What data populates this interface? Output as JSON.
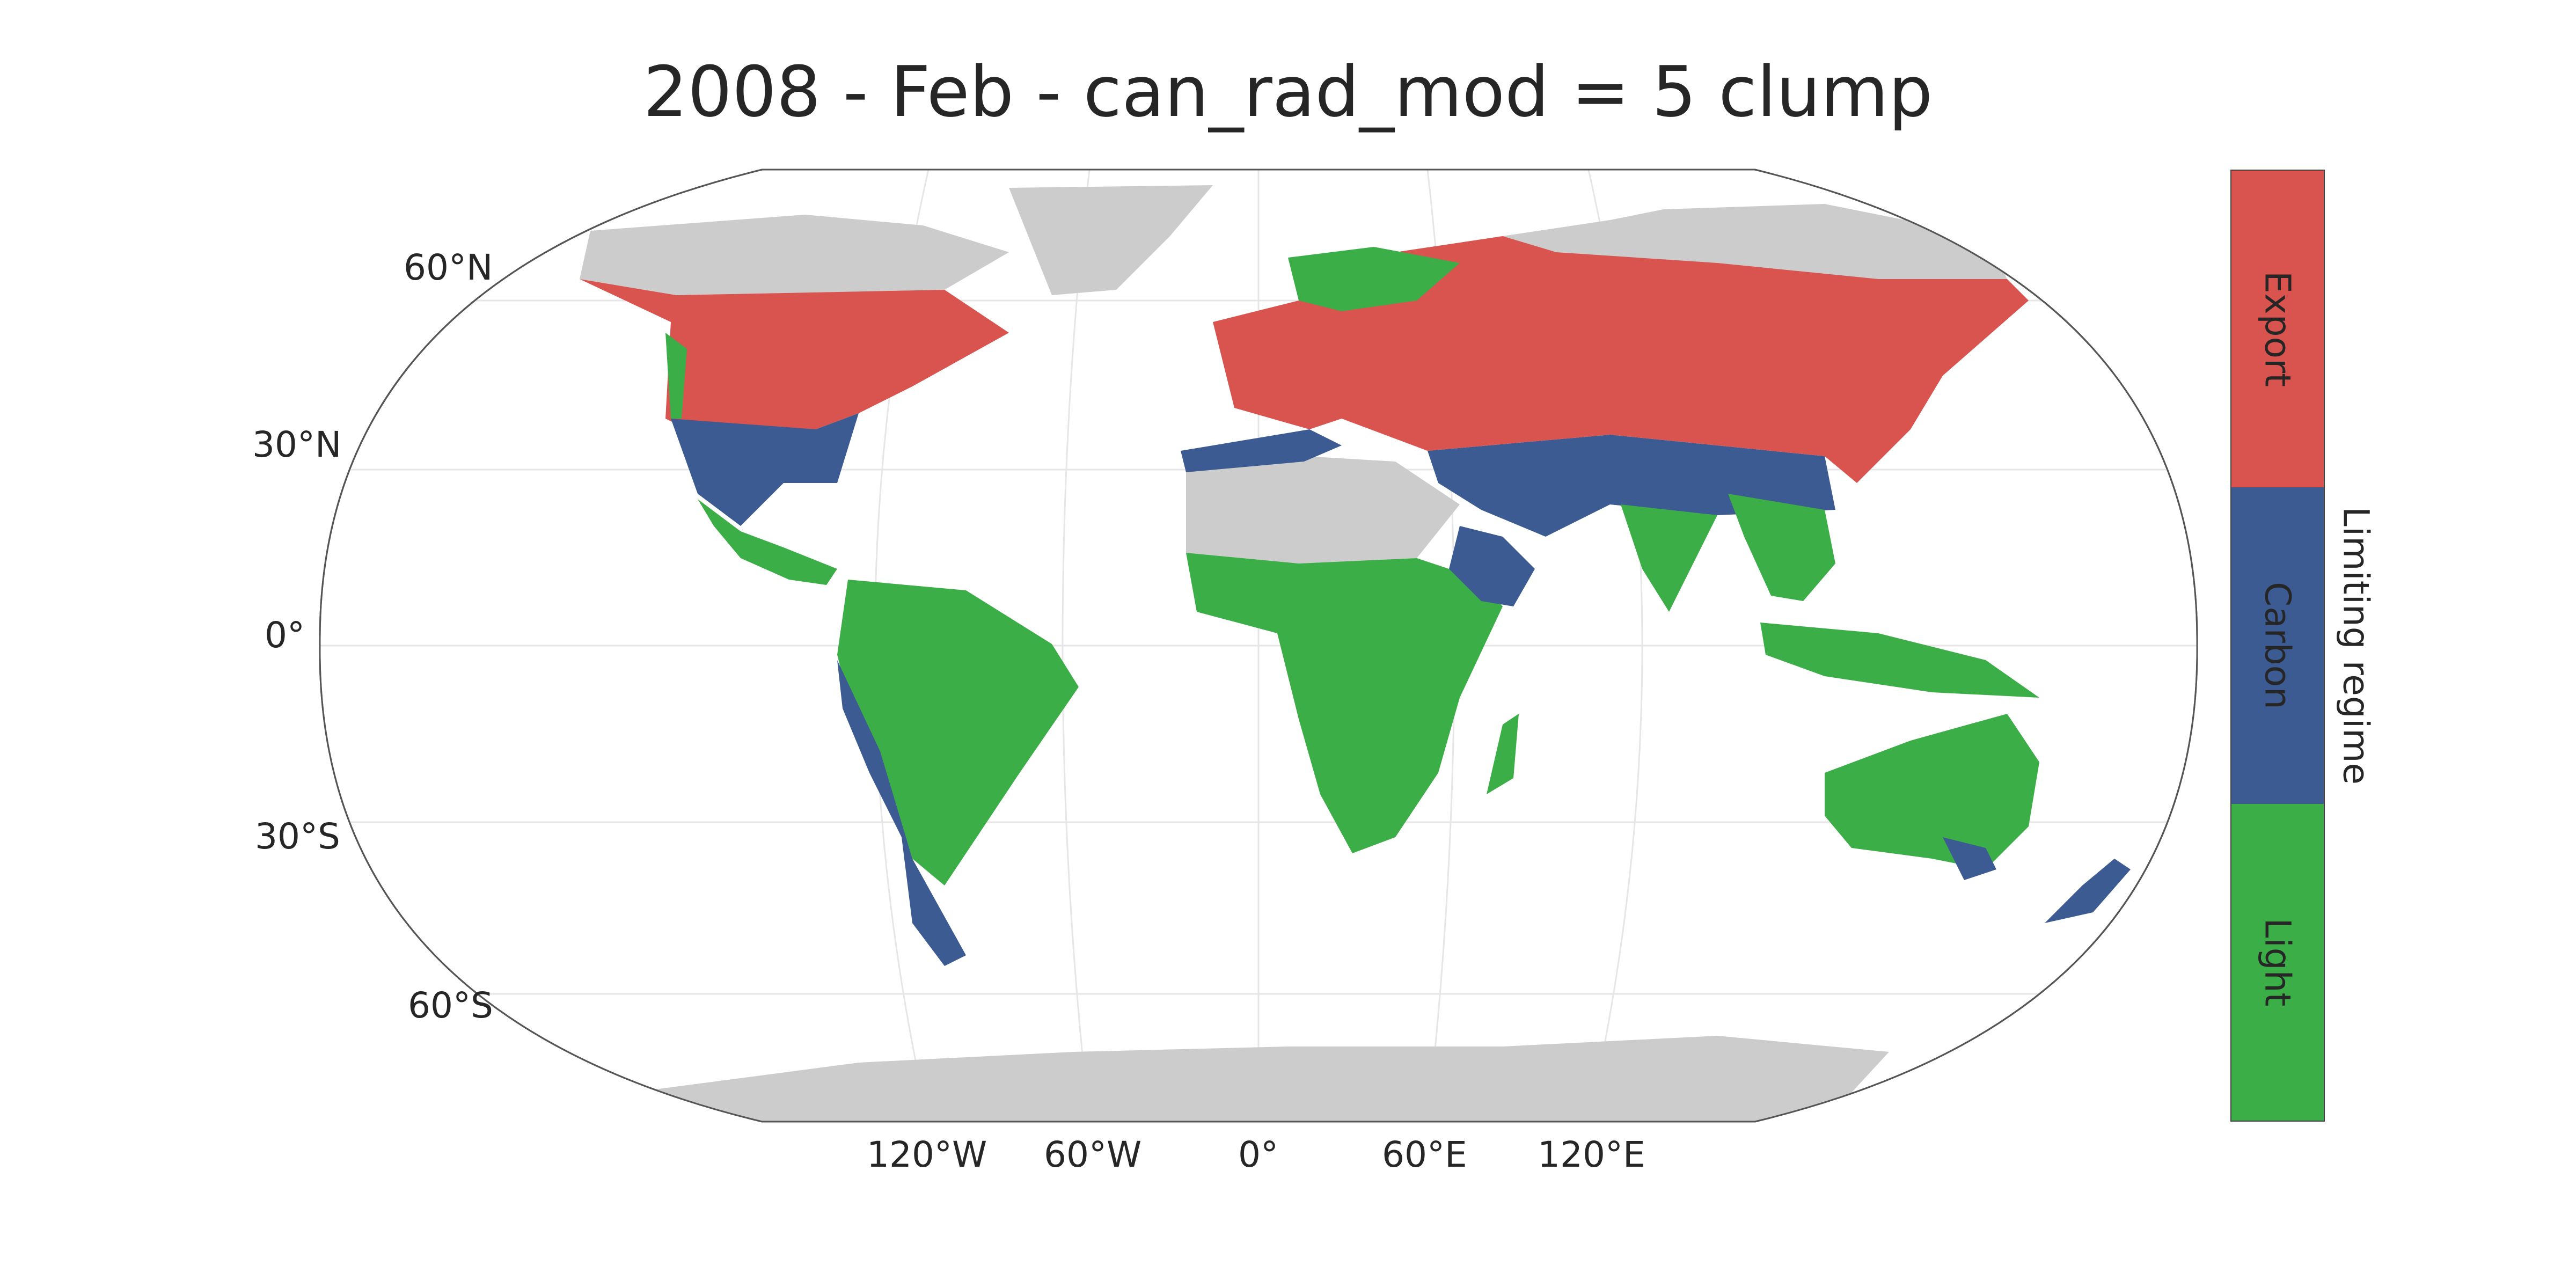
{
  "title": "2008 - Feb - can_rad_mod = 5 clump",
  "map": {
    "projection": "Robinson",
    "land_no_data_color": "#cccccc",
    "ocean_color": "#ffffff",
    "lat_labels": [
      "60°N",
      "30°N",
      "0°",
      "30°S",
      "60°S"
    ],
    "lon_labels": [
      "120°W",
      "60°W",
      "0°",
      "60°E",
      "120°E"
    ]
  },
  "legend": {
    "title": "Limiting regime",
    "categories": [
      {
        "label": "Export",
        "color": "#d9534f"
      },
      {
        "label": "Carbon",
        "color": "#3b5b92"
      },
      {
        "label": "Light",
        "color": "#3cae47"
      }
    ]
  }
}
